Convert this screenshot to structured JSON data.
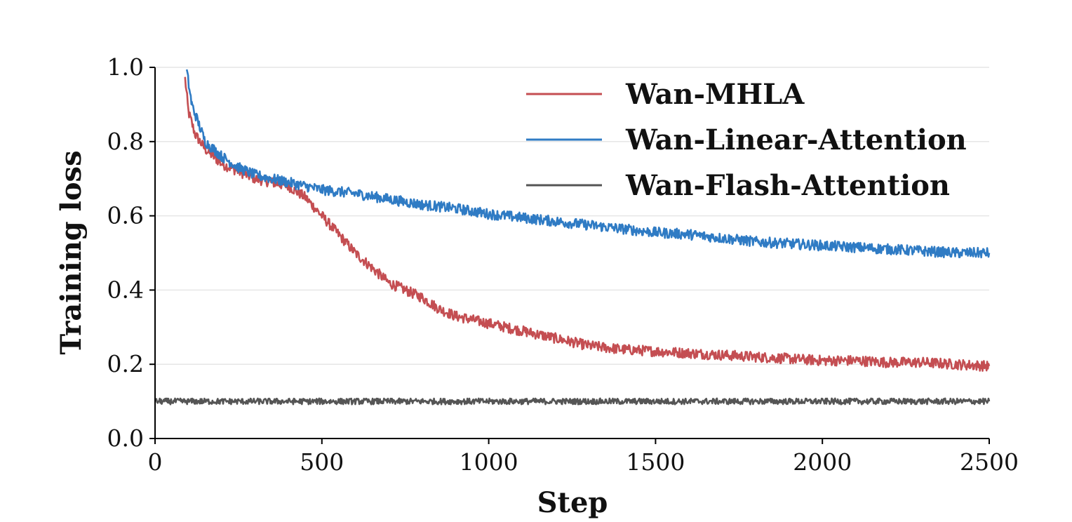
{
  "chart_data": {
    "type": "line",
    "title": "",
    "xlabel": "Step",
    "ylabel": "Training loss",
    "xlim": [
      0,
      2500
    ],
    "ylim": [
      0.0,
      1.0
    ],
    "xticks": [
      0,
      500,
      1000,
      1500,
      2000,
      2500
    ],
    "xtick_labels": [
      "0",
      "500",
      "1000",
      "1500",
      "2000",
      "2500"
    ],
    "yticks": [
      0.0,
      0.2,
      0.4,
      0.6,
      0.8,
      1.0
    ],
    "ytick_labels": [
      "0.0",
      "0.2",
      "0.4",
      "0.6",
      "0.8",
      "1.0"
    ],
    "grid": "horizontal",
    "legend_position": "top-right",
    "series": [
      {
        "name": "Wan-MHLA",
        "color": "#c44e52",
        "x": [
          90,
          100,
          120,
          150,
          200,
          250,
          300,
          350,
          400,
          450,
          500,
          550,
          600,
          650,
          700,
          750,
          800,
          850,
          900,
          950,
          1000,
          1050,
          1100,
          1150,
          1200,
          1300,
          1400,
          1500,
          1600,
          1700,
          1800,
          1900,
          2000,
          2100,
          2200,
          2300,
          2400,
          2500
        ],
        "y": [
          0.97,
          0.88,
          0.82,
          0.78,
          0.74,
          0.72,
          0.7,
          0.69,
          0.68,
          0.65,
          0.6,
          0.55,
          0.5,
          0.46,
          0.42,
          0.4,
          0.38,
          0.35,
          0.33,
          0.32,
          0.31,
          0.3,
          0.29,
          0.28,
          0.27,
          0.25,
          0.24,
          0.235,
          0.23,
          0.225,
          0.22,
          0.215,
          0.21,
          0.21,
          0.205,
          0.205,
          0.2,
          0.195
        ]
      },
      {
        "name": "Wan-Linear-Attention",
        "color": "#2f7bc4",
        "x": [
          95,
          110,
          130,
          150,
          200,
          250,
          300,
          350,
          400,
          450,
          500,
          600,
          700,
          800,
          900,
          1000,
          1100,
          1200,
          1300,
          1400,
          1500,
          1600,
          1700,
          1800,
          1900,
          2000,
          2100,
          2200,
          2300,
          2400,
          2500
        ],
        "y": [
          0.99,
          0.9,
          0.85,
          0.8,
          0.76,
          0.73,
          0.71,
          0.7,
          0.69,
          0.68,
          0.67,
          0.66,
          0.645,
          0.63,
          0.62,
          0.605,
          0.595,
          0.585,
          0.575,
          0.565,
          0.555,
          0.55,
          0.54,
          0.53,
          0.525,
          0.52,
          0.515,
          0.51,
          0.505,
          0.5,
          0.5
        ]
      },
      {
        "name": "Wan-Flash-Attention",
        "color": "#555555",
        "x": [
          0,
          250,
          500,
          750,
          1000,
          1250,
          1500,
          1750,
          2000,
          2250,
          2500
        ],
        "y": [
          0.1,
          0.1,
          0.1,
          0.1,
          0.1,
          0.1,
          0.1,
          0.1,
          0.1,
          0.1,
          0.1
        ]
      }
    ]
  }
}
